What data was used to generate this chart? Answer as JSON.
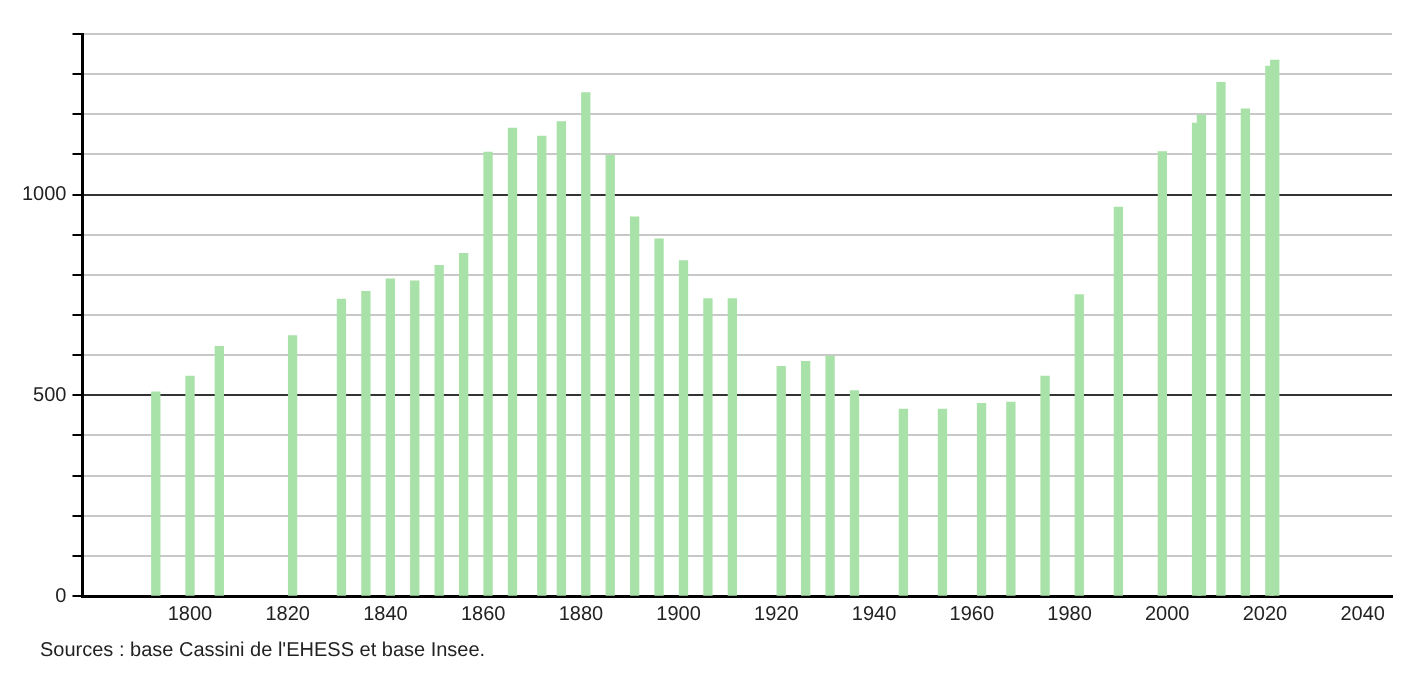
{
  "chart_data": {
    "type": "bar",
    "x": [
      1793,
      1800,
      1806,
      1821,
      1831,
      1836,
      1841,
      1846,
      1851,
      1856,
      1861,
      1866,
      1872,
      1876,
      1881,
      1886,
      1891,
      1896,
      1901,
      1906,
      1911,
      1921,
      1926,
      1931,
      1936,
      1946,
      1954,
      1962,
      1968,
      1975,
      1982,
      1990,
      1999,
      2006,
      2007,
      2011,
      2016,
      2021,
      2022
    ],
    "values": [
      508,
      547,
      621,
      648,
      739,
      758,
      789,
      784,
      823,
      853,
      1105,
      1165,
      1145,
      1181,
      1253,
      1097,
      944,
      889,
      835,
      740,
      740,
      571,
      584,
      597,
      511,
      465,
      465,
      479,
      482,
      547,
      750,
      968,
      1106,
      1177,
      1198,
      1279,
      1213,
      1319,
      1334
    ],
    "color": "#a8e2a8",
    "xlim": [
      1778,
      2046
    ],
    "xticks": [
      1800,
      1820,
      1840,
      1860,
      1880,
      1900,
      1920,
      1940,
      1960,
      1980,
      2000,
      2020,
      2040
    ],
    "ylim": [
      0,
      1400
    ],
    "yticks": [
      0,
      {
        "value": 100,
        "label": null
      },
      {
        "value": 200,
        "label": null
      },
      {
        "value": 300,
        "label": null
      },
      {
        "value": 400,
        "label": null
      },
      500,
      {
        "value": 600,
        "label": null
      },
      {
        "value": 700,
        "label": null
      },
      {
        "value": 800,
        "label": null
      },
      {
        "value": 900,
        "label": null
      },
      1000,
      {
        "value": 1100,
        "label": null
      },
      {
        "value": 1200,
        "label": null
      },
      {
        "value": 1300,
        "label": null
      },
      {
        "value": 1400,
        "label": null
      }
    ],
    "grid": "y",
    "legend": false,
    "annotations": [
      "Sources : base Cassini de l'EHESS et base Insee."
    ]
  }
}
